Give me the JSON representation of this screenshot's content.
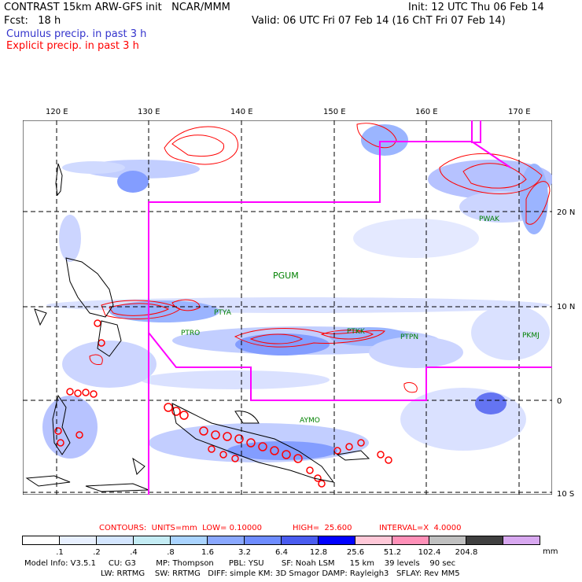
{
  "header": {
    "line1_left": "CONTRAST 15km ARW-GFS init   NCAR/MMM",
    "line1_right": "Init: 12 UTC Thu 06 Feb 14",
    "line2_left": "Fcst:   18 h",
    "line2_right": "Valid: 06 UTC Fri 07 Feb 14 (16 ChT Fri 07 Feb 14)",
    "legend_cumulus": "Cumulus precip. in past 3 h",
    "legend_explicit": "Explicit precip. in past 3 h"
  },
  "colors": {
    "cumulus": "#3333cc",
    "explicit": "#ff0000",
    "boundary": "#ff00ff",
    "station": "#008000"
  },
  "map": {
    "lon_labels": [
      "120 E",
      "130 E",
      "140 E",
      "150 E",
      "160 E",
      "170 E"
    ],
    "lat_labels": [
      "20 N",
      "10 N",
      "0",
      "10 S"
    ],
    "stations": [
      "PGUM",
      "PTYA",
      "PTRO",
      "PTKK",
      "PTPN",
      "PKMJ",
      "PWAK",
      "AYMO"
    ]
  },
  "contour_info": {
    "contours": "CONTOURS:  UNITS=mm  LOW= 0.10000",
    "high": "HIGH=  25.600",
    "interval": "INTERVAL=X  4.0000"
  },
  "colorbar": {
    "colors": [
      "#ffffff",
      "#e8f0ff",
      "#d4e6ff",
      "#c4ecf4",
      "#aad4ff",
      "#8aa8ff",
      "#6e8cff",
      "#4a5cf0",
      "#0000ff",
      "#ffc8d8",
      "#ff90b8",
      "#c0c0c0",
      "#404040",
      "#d8a8f0"
    ],
    "tick_labels": [
      ".1",
      ".2",
      ".4",
      ".8",
      "1.6",
      "3.2",
      "6.4",
      "12.8",
      "25.6",
      "51.2",
      "102.4",
      "204.8"
    ],
    "units": "mm"
  },
  "model_info": {
    "line1": "Model Info: V3.5.1     CU: G3        MP: Thompson      PBL: YSU       SF: Noah LSM      15 km    39 levels    90 sec",
    "line2": "LW: RRTMG    SW: RRTMG   DIFF: simple KM: 3D Smagor DAMP: Rayleigh3   SFLAY: Rev MM5"
  }
}
